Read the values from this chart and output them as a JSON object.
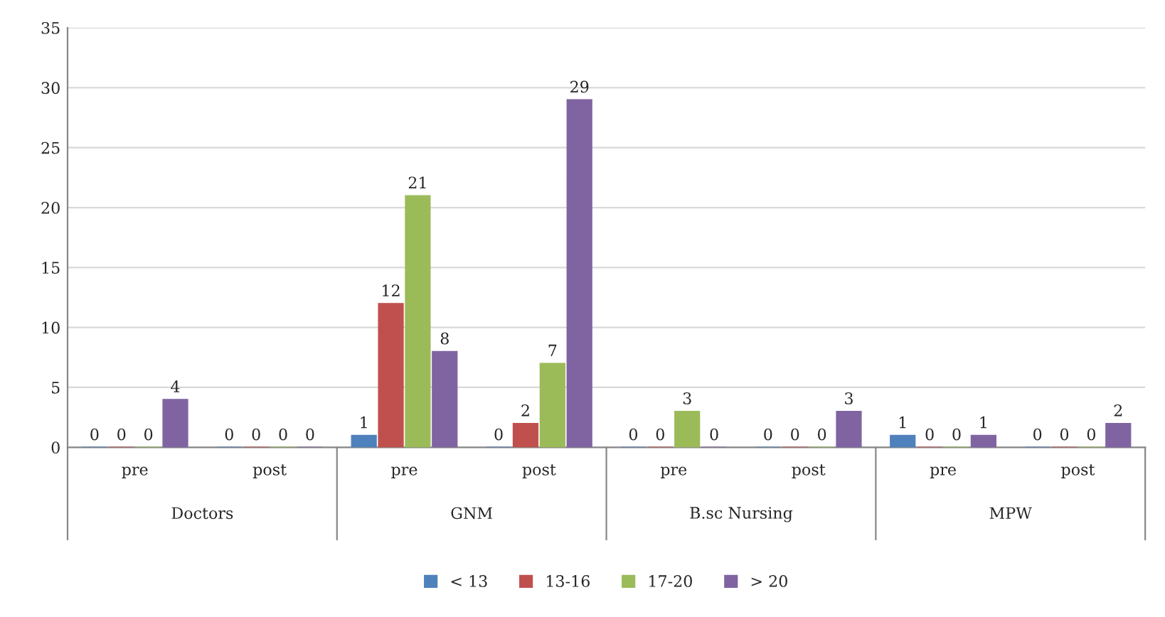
{
  "chart_data": {
    "type": "bar",
    "categories": [
      "pre",
      "post",
      "pre",
      "post",
      "pre",
      "post",
      "pre",
      "post"
    ],
    "series": [
      {
        "name": "< 13",
        "color": "#4f81bd",
        "values": [
          0,
          0,
          1,
          0,
          0,
          0,
          1,
          0
        ]
      },
      {
        "name": "13-16",
        "color": "#c0504d",
        "values": [
          0,
          0,
          12,
          2,
          0,
          0,
          0,
          0
        ]
      },
      {
        "name": "17-20",
        "color": "#9bbb59",
        "values": [
          0,
          0,
          21,
          7,
          3,
          0,
          0,
          0
        ]
      },
      {
        "name": "> 20",
        "color": "#8064a2",
        "values": [
          4,
          0,
          8,
          29,
          0,
          3,
          1,
          2
        ]
      }
    ],
    "annotations": [
      "Doctors",
      "GNM",
      "B.sc Nursing",
      "MPW"
    ],
    "ylim": [
      0,
      35
    ],
    "yticks": [
      0,
      5,
      10,
      15,
      20,
      25,
      30,
      35
    ],
    "grid": "y",
    "legend": "bottom",
    "data_labels": true
  }
}
